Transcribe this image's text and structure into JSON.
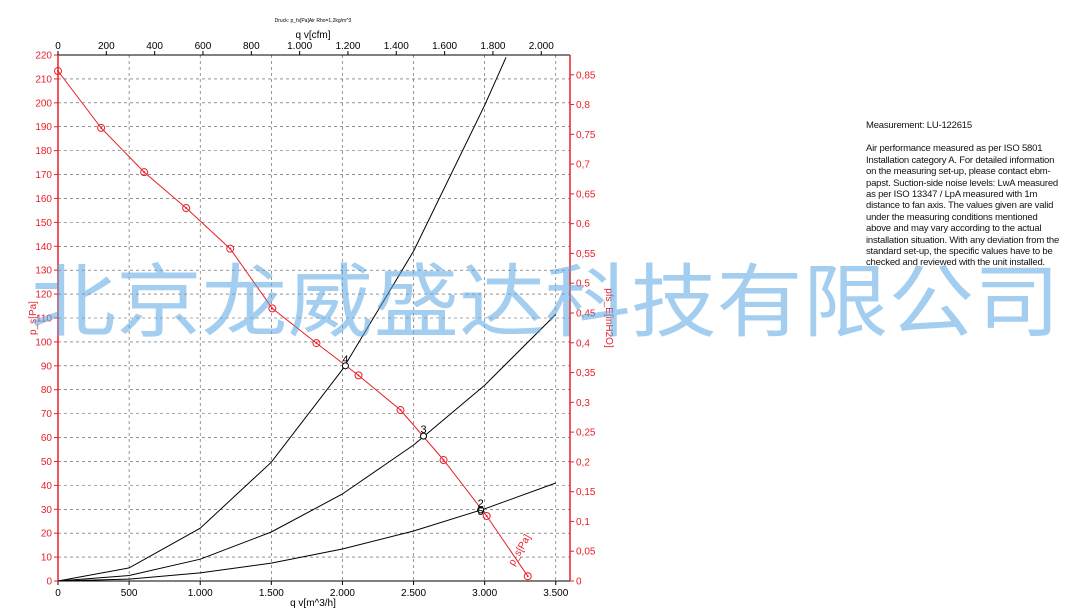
{
  "chart_data": {
    "type": "line",
    "title": "Druck: p_fs[Pa]Air Rho=1,2kg/m^3",
    "x_label": "q v[m^3/h]",
    "x2_label": "q v[cfm]",
    "y_label": "p_s[Pa]",
    "y2_label": "pfs_E[inH2O]",
    "xlim": [
      0,
      3600
    ],
    "xticks": [
      0,
      500,
      {
        "value": 1000,
        "label": "1.000"
      },
      {
        "value": 1500,
        "label": "1.500"
      },
      {
        "value": 2000,
        "label": "2.000"
      },
      {
        "value": 2500,
        "label": "2.500"
      },
      {
        "value": 3000,
        "label": "3.000"
      },
      {
        "value": 3500,
        "label": "3.500"
      }
    ],
    "x2lim": [
      0,
      2118.9
    ],
    "x2ticks": [
      0,
      200,
      400,
      600,
      800,
      {
        "value": 1000,
        "label": "1.000"
      },
      {
        "value": 1200,
        "label": "1.200"
      },
      {
        "value": 1400,
        "label": "1.400"
      },
      {
        "value": 1600,
        "label": "1.600"
      },
      {
        "value": 1800,
        "label": "1.800"
      },
      {
        "value": 2000,
        "label": "2.000"
      }
    ],
    "ylim": [
      0,
      220
    ],
    "yticks": [
      0,
      10,
      20,
      30,
      40,
      50,
      60,
      70,
      80,
      90,
      100,
      110,
      120,
      130,
      140,
      150,
      160,
      170,
      180,
      190,
      200,
      210,
      220
    ],
    "y2lim": [
      0,
      0.8832
    ],
    "y2ticks": [
      0,
      {
        "value": 0.05,
        "label": "0,05"
      },
      {
        "value": 0.1,
        "label": "0,1"
      },
      {
        "value": 0.15,
        "label": "0,15"
      },
      {
        "value": 0.2,
        "label": "0,2"
      },
      {
        "value": 0.25,
        "label": "0,25"
      },
      {
        "value": 0.3,
        "label": "0,3"
      },
      {
        "value": 0.35,
        "label": "0,35"
      },
      {
        "value": 0.4,
        "label": "0,4"
      },
      {
        "value": 0.45,
        "label": "0,45"
      },
      {
        "value": 0.5,
        "label": "0,5"
      },
      {
        "value": 0.55,
        "label": "0,55"
      },
      {
        "value": 0.6,
        "label": "0,6"
      },
      {
        "value": 0.65,
        "label": "0,65"
      },
      {
        "value": 0.7,
        "label": "0,7"
      },
      {
        "value": 0.75,
        "label": "0,75"
      },
      {
        "value": 0.8,
        "label": "0,8"
      },
      {
        "value": 0.85,
        "label": "0,85"
      }
    ],
    "grid": true,
    "axis_color": "#e8202a",
    "series": [
      {
        "name": "p_s[Pa]",
        "color": "#e8202a",
        "markers": true,
        "x": [
          0,
          303,
          606,
          901,
          1211,
          1507,
          1817,
          2113,
          2408,
          2711,
          3014,
          3303
        ],
        "values": [
          213.3,
          189.5,
          171,
          156,
          139,
          114,
          99.5,
          86,
          71.5,
          50.6,
          27.2,
          2
        ]
      },
      {
        "color": "#000000",
        "markers": false,
        "x": [
          0,
          500,
          1000,
          1500,
          2000,
          2500,
          3000,
          3150
        ],
        "values": [
          0,
          5.5,
          22.1,
          49.7,
          88.4,
          138,
          199,
          219
        ]
      },
      {
        "color": "#000000",
        "markers": false,
        "x": [
          0,
          500,
          1000,
          1500,
          2000,
          2500,
          3000,
          3500
        ],
        "values": [
          0,
          2.3,
          9.1,
          20.5,
          36.4,
          56.9,
          81.9,
          111.5
        ]
      },
      {
        "color": "#000000",
        "markers": false,
        "x": [
          0,
          500,
          1000,
          1500,
          2000,
          2500,
          3000,
          3500
        ],
        "values": [
          0,
          0.8,
          3.4,
          7.5,
          13.4,
          20.9,
          30.2,
          41.0
        ]
      }
    ],
    "operating_points": [
      {
        "label": "4",
        "x": 2021,
        "y": 90
      },
      {
        "label": "3",
        "x": 2570,
        "y": 60.6
      },
      {
        "label": "2",
        "x": 2972,
        "y": 29.7
      },
      {
        "label": "5",
        "x": 2972,
        "y": 29.7
      }
    ]
  },
  "measurement": "Measurement: LU-122615",
  "description": "Air performance measured as per ISO 5801 Installation category A. For detailed information on the measuring set-up, please contact ebm-papst. Suction-side noise levels: LwA measured as per ISO 13347 / LpA measured with 1m distance to fan axis. The values given are valid under the measuring conditions mentioned above and may vary according to the actual installation situation. With any deviation from the standard set-up, the specific values have to be checked and reviewed with the unit installed.",
  "watermark": "北京龙威盛达科技有限公司"
}
